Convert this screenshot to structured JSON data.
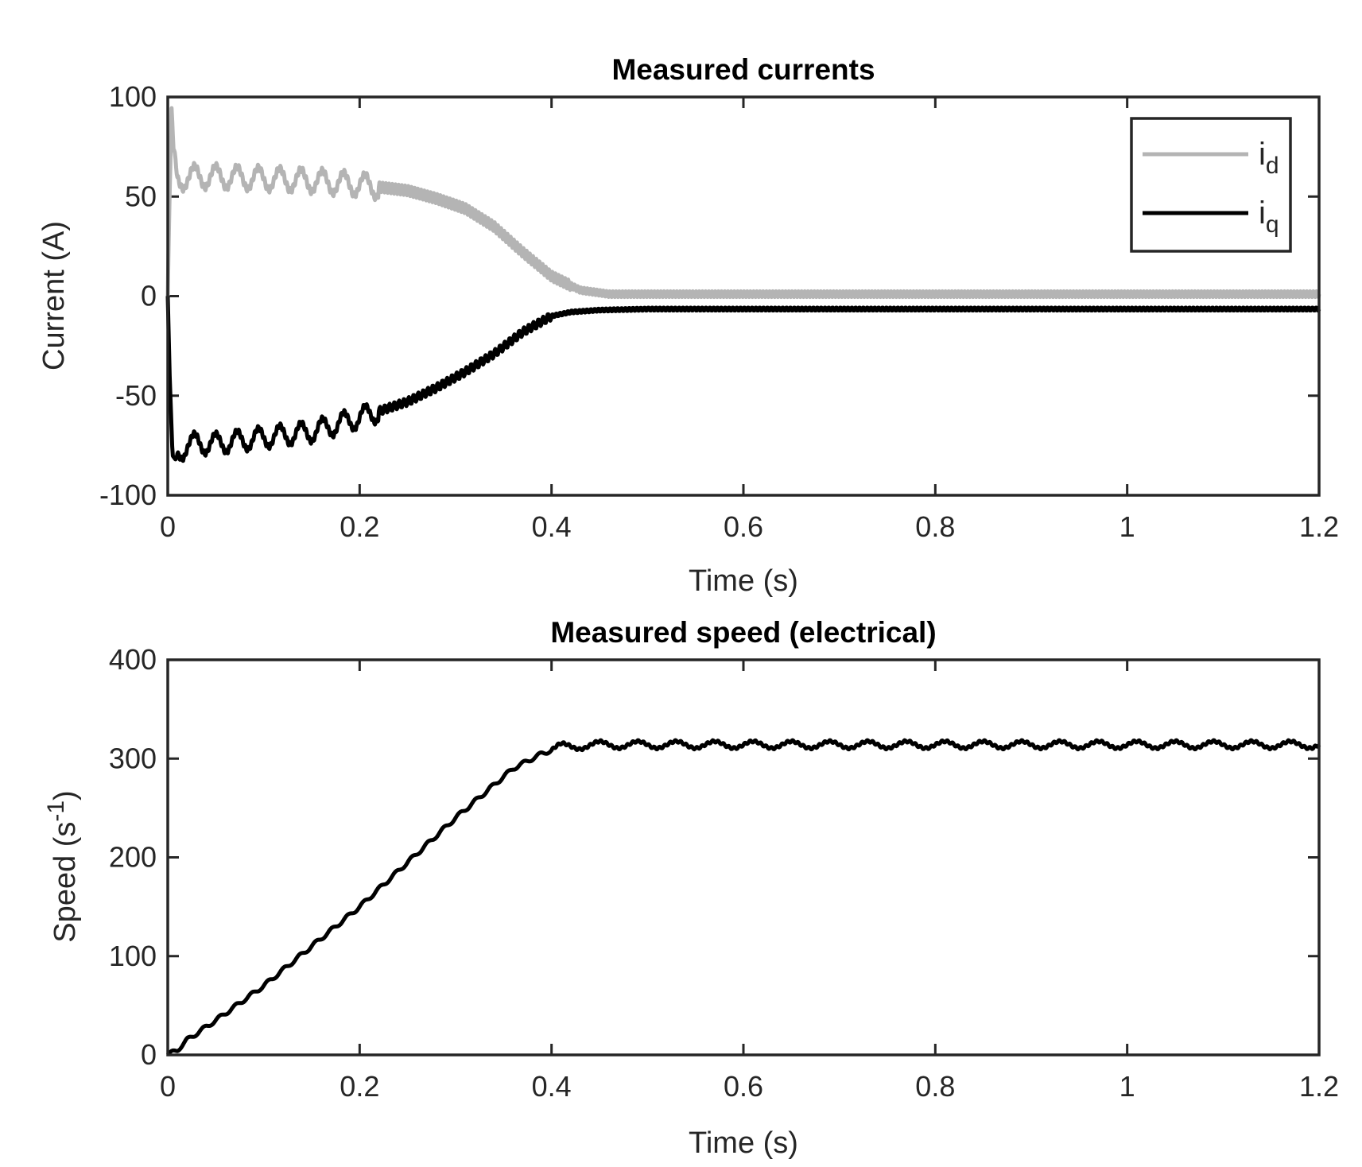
{
  "chart_data": [
    {
      "type": "line",
      "title": "Measured currents",
      "xlabel": "Time (s)",
      "ylabel": "Current (A)",
      "xlim": [
        0,
        1.2
      ],
      "ylim": [
        -100,
        100
      ],
      "xticks": [
        0,
        0.2,
        0.4,
        0.6,
        0.8,
        1,
        1.2
      ],
      "xtick_labels": [
        "0",
        "0.2",
        "0.4",
        "0.6",
        "0.8",
        "1",
        "1.2"
      ],
      "yticks": [
        100,
        50,
        0,
        -50,
        -100
      ],
      "ytick_labels": [
        "100",
        "50",
        "0",
        "-50",
        "-100"
      ],
      "legend": {
        "position": "top-right",
        "entries": [
          {
            "base": "i",
            "sub": "d",
            "series": "i_d"
          },
          {
            "base": "i",
            "sub": "q",
            "series": "i_q"
          }
        ]
      },
      "series": [
        {
          "name": "i_d",
          "color": "#b4b4b4",
          "x": [
            0,
            0.002,
            0.004,
            0.006,
            0.01,
            0.02,
            0.05,
            0.1,
            0.15,
            0.2,
            0.25,
            0.28,
            0.31,
            0.34,
            0.37,
            0.4,
            0.43,
            0.46,
            0.5,
            0.6,
            0.8,
            1.0,
            1.2
          ],
          "y": [
            0,
            50,
            88,
            70,
            58,
            60,
            60,
            59,
            58,
            56,
            53,
            49,
            44,
            35,
            22,
            10,
            3,
            1,
            1,
            1,
            1,
            1,
            1
          ]
        },
        {
          "name": "i_q",
          "color": "#000000",
          "x": [
            0,
            0.002,
            0.005,
            0.008,
            0.02,
            0.05,
            0.1,
            0.15,
            0.2,
            0.25,
            0.28,
            0.31,
            0.34,
            0.37,
            0.4,
            0.42,
            0.45,
            0.5,
            0.6,
            0.8,
            1.0,
            1.2
          ],
          "y": [
            0,
            -40,
            -80,
            -82,
            -74,
            -74,
            -71,
            -68,
            -61,
            -53,
            -46,
            -38,
            -29,
            -18,
            -10,
            -8,
            -7,
            -6.5,
            -6.5,
            -6.5,
            -6.5,
            -6.5
          ]
        }
      ]
    },
    {
      "type": "line",
      "title": "Measured speed (electrical)",
      "xlabel": "Time (s)",
      "ylabel": {
        "base": "Speed (s",
        "sup": "-1",
        "close": ")"
      },
      "xlim": [
        0,
        1.2
      ],
      "ylim": [
        0,
        400
      ],
      "xticks": [
        0,
        0.2,
        0.4,
        0.6,
        0.8,
        1,
        1.2
      ],
      "xtick_labels": [
        "0",
        "0.2",
        "0.4",
        "0.6",
        "0.8",
        "1",
        "1.2"
      ],
      "yticks": [
        400,
        300,
        200,
        100,
        0
      ],
      "ytick_labels": [
        "400",
        "300",
        "200",
        "100",
        "0"
      ],
      "series": [
        {
          "name": "speed",
          "color": "#000000",
          "x": [
            0,
            0.01,
            0.02,
            0.05,
            0.1,
            0.15,
            0.2,
            0.25,
            0.3,
            0.33,
            0.36,
            0.39,
            0.41,
            0.45,
            0.5,
            0.6,
            0.8,
            1.0,
            1.2
          ],
          "y": [
            0,
            5,
            15,
            35,
            70,
            110,
            150,
            195,
            240,
            265,
            290,
            305,
            312,
            314,
            314,
            314,
            314,
            314,
            314
          ]
        }
      ]
    }
  ]
}
